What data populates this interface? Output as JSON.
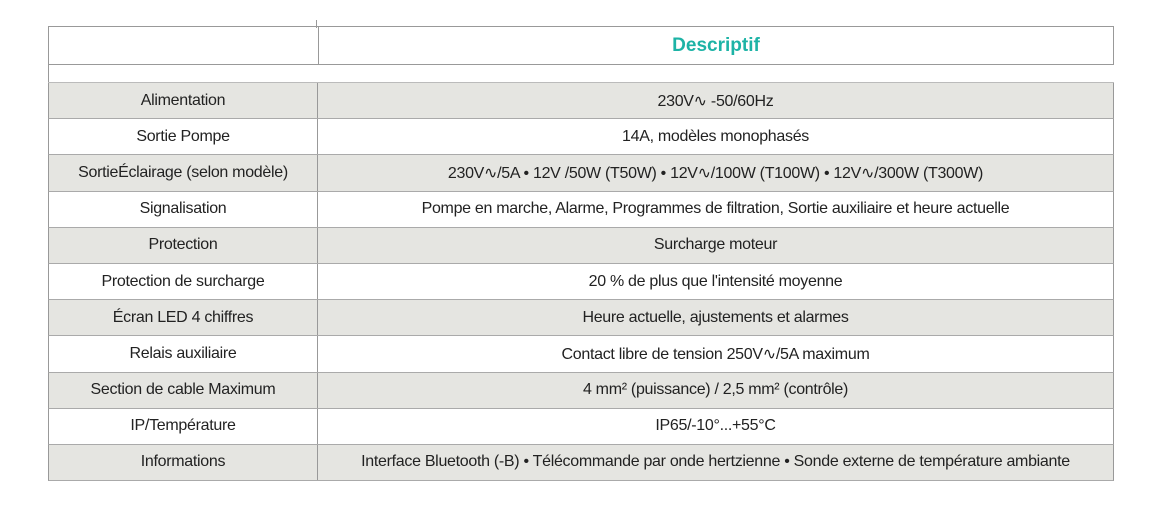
{
  "header": {
    "label_col": "",
    "title": "Descriptif"
  },
  "colors": {
    "title": "#1db3a6",
    "row_alt": "#e5e5e1"
  },
  "rows": [
    {
      "label": "Alimentation",
      "value": "230V∿ -50/60Hz"
    },
    {
      "label": "Sortie Pompe",
      "value": "14A, modèles monophasés"
    },
    {
      "label": "SortieÉclairage (selon modèle)",
      "value": "230V∿/5A • 12V /50W (T50W) • 12V∿/100W (T100W) • 12V∿/300W (T300W)"
    },
    {
      "label": "Signalisation",
      "value": "Pompe en marche, Alarme, Programmes de filtration, Sortie auxiliaire et heure actuelle"
    },
    {
      "label": "Protection",
      "value": "Surcharge moteur"
    },
    {
      "label": "Protection de surcharge",
      "value": "20 % de plus que l'intensité moyenne"
    },
    {
      "label": "Écran LED 4 chiffres",
      "value": "Heure actuelle, ajustements et alarmes"
    },
    {
      "label": "Relais auxiliaire",
      "value": "Contact libre de tension 250V∿/5A maximum"
    },
    {
      "label": "Section de cable Maximum",
      "value": "4 mm² (puissance) / 2,5 mm² (contrôle)"
    },
    {
      "label": "IP/Température",
      "value": "IP65/-10°...+55°C"
    },
    {
      "label": "Informations",
      "value": "Interface Bluetooth (-B) • Télécommande par onde hertzienne • Sonde externe de température ambiante"
    }
  ]
}
